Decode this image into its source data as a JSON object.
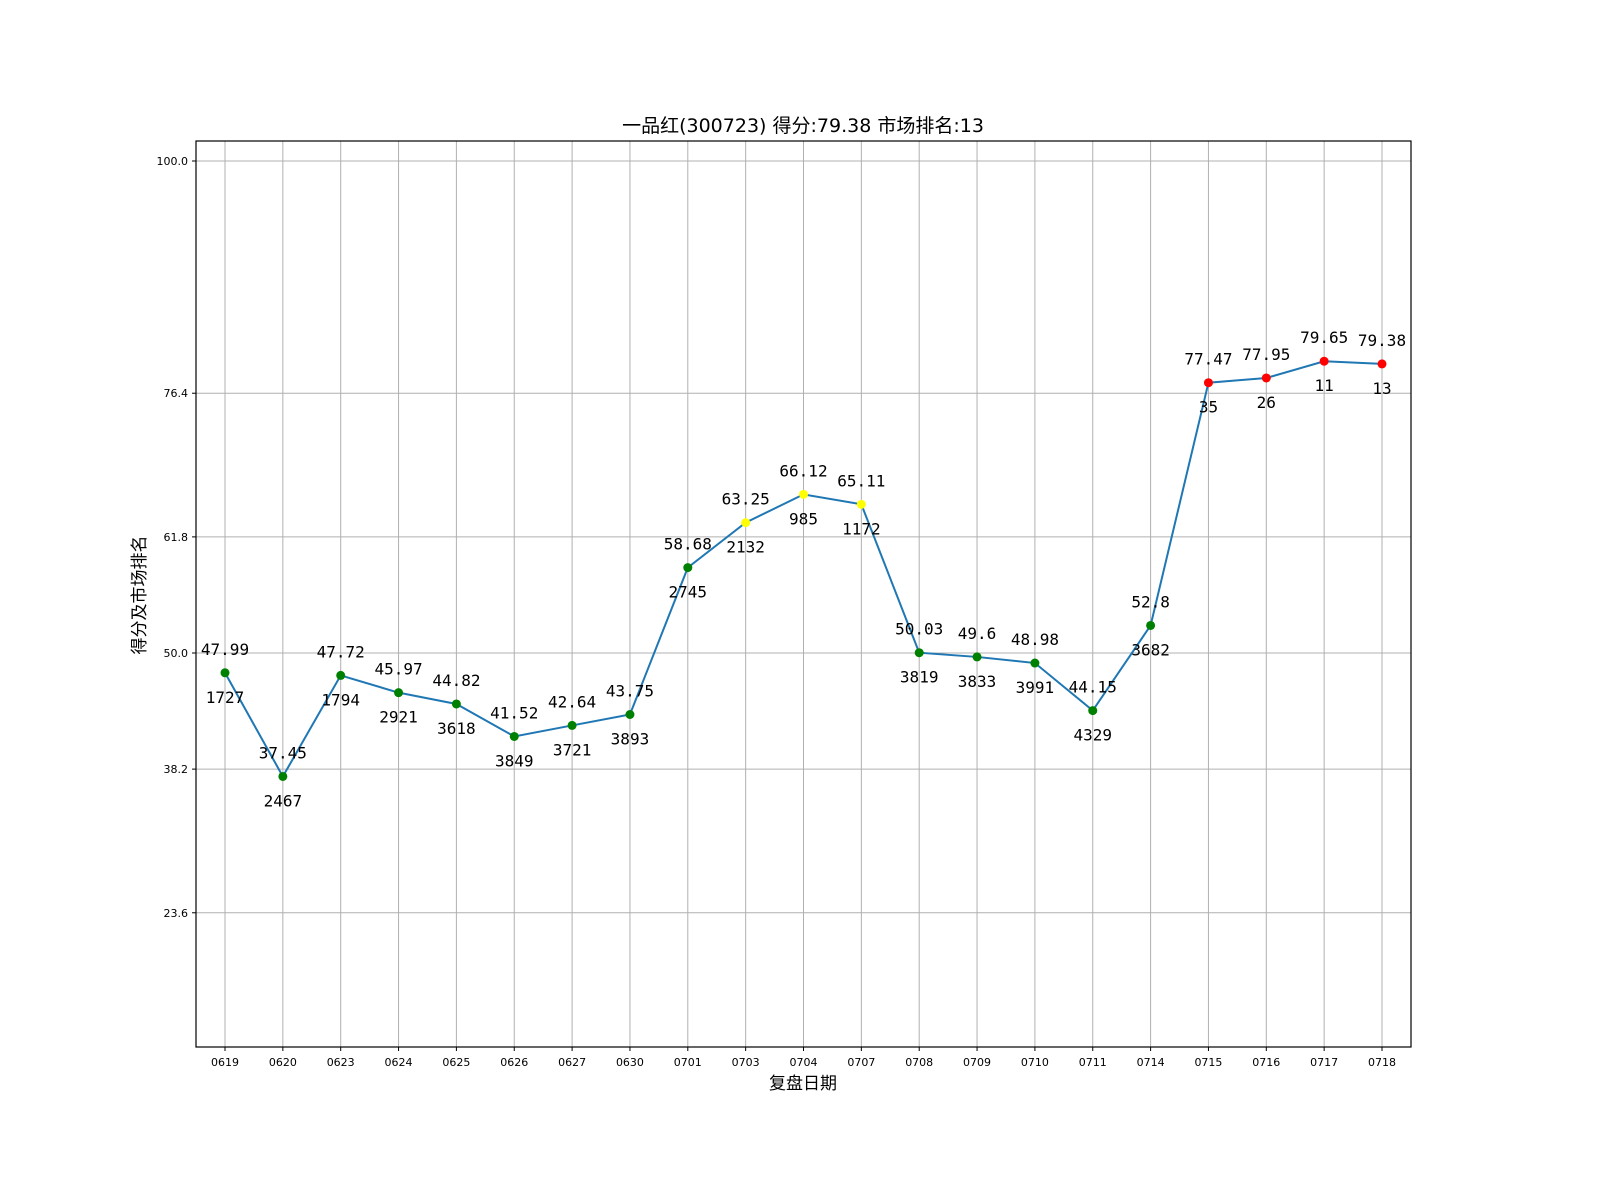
{
  "chart_data": {
    "type": "line",
    "title": "一品红(300723) 得分:79.38  市场排名:13",
    "xlabel": "复盘日期",
    "ylabel": "得分及市场排名",
    "ylim": [
      10,
      102
    ],
    "yticks": [
      "100.0",
      "76.4",
      "61.8",
      "50.0",
      "38.2",
      "23.6"
    ],
    "ytick_values": [
      100.0,
      76.4,
      61.8,
      50.0,
      38.2,
      23.6
    ],
    "grid": true,
    "legend": null,
    "categories": [
      "0619",
      "0620",
      "0623",
      "0624",
      "0625",
      "0626",
      "0627",
      "0630",
      "0701",
      "0703",
      "0704",
      "0707",
      "0708",
      "0709",
      "0710",
      "0711",
      "0714",
      "0715",
      "0716",
      "0717",
      "0718"
    ],
    "series": [
      {
        "name": "得分",
        "line_color": "#1f77b4",
        "values": [
          47.99,
          37.45,
          47.72,
          45.97,
          44.82,
          41.52,
          42.64,
          43.75,
          58.68,
          63.25,
          66.12,
          65.11,
          50.03,
          49.6,
          48.98,
          44.15,
          52.8,
          77.47,
          77.95,
          79.65,
          79.38
        ],
        "score_labels": [
          "47.99",
          "37.45",
          "47.72",
          "45.97",
          "44.82",
          "41.52",
          "42.64",
          "43.75",
          "58.68",
          "63.25",
          "66.12",
          "65.11",
          "50.03",
          "49.6",
          "48.98",
          "44.15",
          "52.8",
          "77.47",
          "77.95",
          "79.65",
          "79.38"
        ],
        "marker_colors": [
          "#008000",
          "#008000",
          "#008000",
          "#008000",
          "#008000",
          "#008000",
          "#008000",
          "#008000",
          "#008000",
          "#ffff00",
          "#ffff00",
          "#ffff00",
          "#008000",
          "#008000",
          "#008000",
          "#008000",
          "#008000",
          "#ff0000",
          "#ff0000",
          "#ff0000",
          "#ff0000"
        ]
      },
      {
        "name": "市场排名",
        "values": [
          1727,
          2467,
          1794,
          2921,
          3618,
          3849,
          3721,
          3893,
          2745,
          2132,
          985,
          1172,
          3819,
          3833,
          3991,
          4329,
          3682,
          35,
          26,
          11,
          13
        ]
      }
    ]
  },
  "colors": {
    "line": "#1f77b4",
    "marker_low": "#008000",
    "marker_mid": "#ffff00",
    "marker_high": "#ff0000",
    "grid": "#b0b0b0"
  }
}
